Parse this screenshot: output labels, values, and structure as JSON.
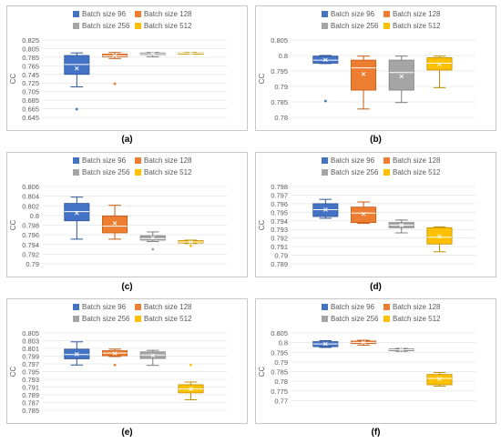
{
  "figure": {
    "legend_labels": [
      "Batch size 96",
      "Batch size 128",
      "Batch size 256",
      "Batch size 512"
    ],
    "colors": {
      "series": [
        "#4472C4",
        "#ED7D31",
        "#A5A5A5",
        "#FFC000"
      ],
      "stroke": [
        "#2F5597",
        "#C55A11",
        "#7F7F7F",
        "#BF9000"
      ],
      "frame": "#C8C8C8",
      "grid": "#E6E6E6",
      "text": "#595959"
    },
    "panel_labels": [
      "(a)",
      "(b)",
      "(c)",
      "(d)",
      "(e)",
      "(f)"
    ]
  },
  "chart_data": [
    {
      "type": "boxplot",
      "label": "(a)",
      "ylabel": "CC",
      "ylim": [
        0.645,
        0.825
      ],
      "yticks": [
        "0.825",
        "0.805",
        "0.785",
        "0.765",
        "0.745",
        "0.725",
        "0.705",
        "0.685",
        "0.665",
        "0.645"
      ],
      "legend": "top-right",
      "grid": true,
      "series": [
        {
          "name": "Batch size 96",
          "whisker_low": 0.716,
          "q1": 0.745,
          "median": 0.768,
          "q3": 0.789,
          "whisker_high": 0.795,
          "mean": 0.759,
          "outliers": [
            0.664
          ]
        },
        {
          "name": "Batch size 128",
          "whisker_low": 0.782,
          "q1": 0.786,
          "median": 0.788,
          "q3": 0.792,
          "whisker_high": 0.796,
          "mean": 0.789,
          "outliers": [
            0.723
          ]
        },
        {
          "name": "Batch size 256",
          "whisker_low": 0.786,
          "q1": 0.791,
          "median": 0.793,
          "q3": 0.795,
          "whisker_high": 0.796,
          "mean": 0.793,
          "outliers": []
        },
        {
          "name": "Batch size 512",
          "whisker_low": 0.792,
          "q1": 0.793,
          "median": 0.794,
          "q3": 0.795,
          "whisker_high": 0.796,
          "mean": 0.794,
          "outliers": []
        }
      ]
    },
    {
      "type": "boxplot",
      "label": "(b)",
      "ylabel": "CC",
      "ylim": [
        0.78,
        0.805
      ],
      "yticks": [
        "0.805",
        "0.8",
        "0.795",
        "0.79",
        "0.785",
        "0.78"
      ],
      "legend": "top-right",
      "grid": true,
      "series": [
        {
          "name": "Batch size 96",
          "whisker_low": 0.7974,
          "q1": 0.7975,
          "median": 0.7985,
          "q3": 0.7998,
          "whisker_high": 0.8,
          "mean": 0.7986,
          "outliers": [
            0.7853
          ]
        },
        {
          "name": "Batch size 128",
          "whisker_low": 0.7827,
          "q1": 0.7888,
          "median": 0.796,
          "q3": 0.7985,
          "whisker_high": 0.7998,
          "mean": 0.794,
          "outliers": []
        },
        {
          "name": "Batch size 256",
          "whisker_low": 0.7848,
          "q1": 0.7888,
          "median": 0.7945,
          "q3": 0.7985,
          "whisker_high": 0.7998,
          "mean": 0.7933,
          "outliers": []
        },
        {
          "name": "Batch size 512",
          "whisker_low": 0.7896,
          "q1": 0.7953,
          "median": 0.7975,
          "q3": 0.7993,
          "whisker_high": 0.7998,
          "mean": 0.7972,
          "outliers": []
        }
      ]
    },
    {
      "type": "boxplot",
      "label": "(c)",
      "ylabel": "CC",
      "ylim": [
        0.79,
        0.806
      ],
      "yticks": [
        "0.806",
        "0.804",
        "0.802",
        "0.8",
        "0.798",
        "0.796",
        "0.794",
        "0.792",
        "0.79"
      ],
      "legend": "top-right",
      "grid": true,
      "series": [
        {
          "name": "Batch size 96",
          "whisker_low": 0.7951,
          "q1": 0.7989,
          "median": 0.8008,
          "q3": 0.8025,
          "whisker_high": 0.8038,
          "mean": 0.8005,
          "outliers": []
        },
        {
          "name": "Batch size 128",
          "whisker_low": 0.7951,
          "q1": 0.7964,
          "median": 0.7978,
          "q3": 0.7999,
          "whisker_high": 0.8021,
          "mean": 0.7984,
          "outliers": []
        },
        {
          "name": "Batch size 256",
          "whisker_low": 0.7946,
          "q1": 0.7949,
          "median": 0.7952,
          "q3": 0.7958,
          "whisker_high": 0.7966,
          "mean": 0.7954,
          "outliers": [
            0.793
          ]
        },
        {
          "name": "Batch size 512",
          "whisker_low": 0.7942,
          "q1": 0.7943,
          "median": 0.7945,
          "q3": 0.7948,
          "whisker_high": 0.7949,
          "mean": 0.7945,
          "outliers": [
            0.7937
          ]
        }
      ]
    },
    {
      "type": "boxplot",
      "label": "(d)",
      "ylabel": "CC",
      "ylim": [
        0.789,
        0.798
      ],
      "yticks": [
        "0.798",
        "0.797",
        "0.796",
        "0.795",
        "0.794",
        "0.793",
        "0.792",
        "0.791",
        "0.79",
        "0.789"
      ],
      "legend": "top-right",
      "grid": true,
      "series": [
        {
          "name": "Batch size 96",
          "whisker_low": 0.7943,
          "q1": 0.7945,
          "median": 0.7953,
          "q3": 0.796,
          "whisker_high": 0.7965,
          "mean": 0.7953,
          "outliers": []
        },
        {
          "name": "Batch size 128",
          "whisker_low": 0.7937,
          "q1": 0.7938,
          "median": 0.7949,
          "q3": 0.7956,
          "whisker_high": 0.7962,
          "mean": 0.7948,
          "outliers": []
        },
        {
          "name": "Batch size 256",
          "whisker_low": 0.7926,
          "q1": 0.7932,
          "median": 0.7935,
          "q3": 0.7938,
          "whisker_high": 0.7941,
          "mean": 0.7935,
          "outliers": []
        },
        {
          "name": "Batch size 512",
          "whisker_low": 0.7904,
          "q1": 0.7913,
          "median": 0.7921,
          "q3": 0.7932,
          "whisker_high": 0.7933,
          "mean": 0.7922,
          "outliers": []
        }
      ]
    },
    {
      "type": "boxplot",
      "label": "(e)",
      "ylabel": "CC",
      "ylim": [
        0.785,
        0.805
      ],
      "yticks": [
        "0.805",
        "0.803",
        "0.801",
        "0.799",
        "0.797",
        "0.795",
        "0.793",
        "0.791",
        "0.789",
        "0.787",
        "0.785"
      ],
      "legend": "top-right",
      "grid": true,
      "series": [
        {
          "name": "Batch size 96",
          "whisker_low": 0.7967,
          "q1": 0.7983,
          "median": 0.7994,
          "q3": 0.8008,
          "whisker_high": 0.8027,
          "mean": 0.7995,
          "outliers": []
        },
        {
          "name": "Batch size 128",
          "whisker_low": 0.7989,
          "q1": 0.7991,
          "median": 0.7998,
          "q3": 0.8004,
          "whisker_high": 0.8008,
          "mean": 0.7997,
          "outliers": [
            0.7967
          ]
        },
        {
          "name": "Batch size 256",
          "whisker_low": 0.7966,
          "q1": 0.7984,
          "median": 0.7993,
          "q3": 0.8001,
          "whisker_high": 0.8005,
          "mean": 0.7992,
          "outliers": []
        },
        {
          "name": "Batch size 512",
          "whisker_low": 0.7877,
          "q1": 0.7895,
          "median": 0.7905,
          "q3": 0.7916,
          "whisker_high": 0.7923,
          "mean": 0.7905,
          "outliers": [
            0.7967
          ]
        }
      ]
    },
    {
      "type": "boxplot",
      "label": "(f)",
      "ylabel": "CC",
      "ylim": [
        0.765,
        0.805
      ],
      "yticks": [
        "0.805",
        "0.8",
        "0.795",
        "0.79",
        "0.785",
        "0.78",
        "0.775",
        "0.77"
      ],
      "legend": "top-right",
      "grid": true,
      "series": [
        {
          "name": "Batch size 96",
          "whisker_low": 0.7975,
          "q1": 0.7979,
          "median": 0.7993,
          "q3": 0.8005,
          "whisker_high": 0.801,
          "mean": 0.7993,
          "outliers": []
        },
        {
          "name": "Batch size 128",
          "whisker_low": 0.7987,
          "q1": 0.7995,
          "median": 0.8001,
          "q3": 0.8008,
          "whisker_high": 0.8012,
          "mean": 0.8001,
          "outliers": []
        },
        {
          "name": "Batch size 256",
          "whisker_low": 0.7955,
          "q1": 0.7958,
          "median": 0.7963,
          "q3": 0.7967,
          "whisker_high": 0.797,
          "mean": 0.7963,
          "outliers": []
        },
        {
          "name": "Batch size 512",
          "whisker_low": 0.7775,
          "q1": 0.7782,
          "median": 0.7815,
          "q3": 0.7835,
          "whisker_high": 0.7845,
          "mean": 0.7812,
          "outliers": []
        }
      ]
    }
  ]
}
